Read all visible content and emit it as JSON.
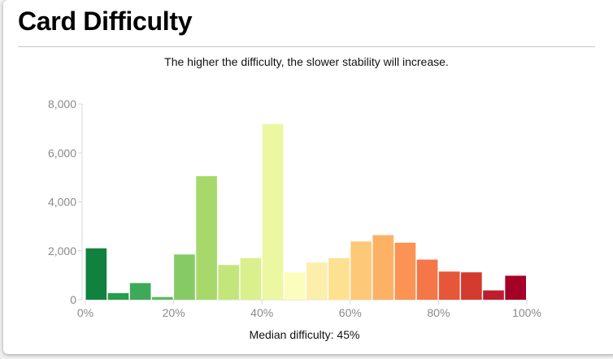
{
  "card": {
    "title": "Card Difficulty",
    "subtitle": "The higher the difficulty, the slower stability will increase."
  },
  "chart_data": {
    "type": "bar",
    "title": "Card Difficulty",
    "subtitle": "The higher the difficulty, the slower stability will increase.",
    "xlabel": "",
    "ylabel": "",
    "xlim": [
      0,
      100
    ],
    "ylim": [
      0,
      8000
    ],
    "bin_width": 5,
    "bins": [
      0,
      5,
      10,
      15,
      20,
      25,
      30,
      35,
      40,
      45,
      50,
      55,
      60,
      65,
      70,
      75,
      80,
      85,
      90,
      95
    ],
    "values": [
      2100,
      270,
      680,
      110,
      1850,
      5050,
      1420,
      1700,
      7180,
      1120,
      1520,
      1700,
      2380,
      2640,
      2330,
      1640,
      1150,
      1120,
      380,
      980
    ],
    "colors": [
      "#11813f",
      "#269d4c",
      "#3ea959",
      "#5db95f",
      "#86ca66",
      "#a6d96a",
      "#c3e67b",
      "#daf08c",
      "#ecf7a2",
      "#fbfdbc",
      "#fdeeac",
      "#fee190",
      "#fdc979",
      "#fdb165",
      "#fa9353",
      "#f57747",
      "#e55738",
      "#d53a2e",
      "#bf1d2d",
      "#a50026"
    ],
    "y_ticks": [
      {
        "value": 0,
        "label": "0"
      },
      {
        "value": 2000,
        "label": "2,000"
      },
      {
        "value": 4000,
        "label": "4,000"
      },
      {
        "value": 6000,
        "label": "6,000"
      },
      {
        "value": 8000,
        "label": "8,000"
      }
    ],
    "x_ticks": [
      {
        "value": 0,
        "label": "0%"
      },
      {
        "value": 20,
        "label": "20%"
      },
      {
        "value": 40,
        "label": "40%"
      },
      {
        "value": 60,
        "label": "60%"
      },
      {
        "value": 80,
        "label": "80%"
      },
      {
        "value": 100,
        "label": "100%"
      }
    ],
    "grid": false,
    "legend": "none",
    "annotation": "Median difficulty: 45%",
    "axis_color": "#d8d8d8"
  }
}
